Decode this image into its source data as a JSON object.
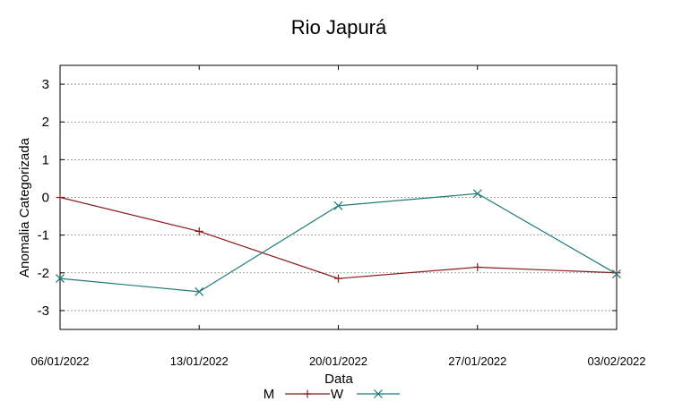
{
  "chart_data": {
    "type": "line",
    "title": "Rio Japurá",
    "xlabel": "Data",
    "ylabel": "Anomalia Categorizada",
    "categories": [
      "06/01/2022",
      "13/01/2022",
      "20/01/2022",
      "27/01/2022",
      "03/02/2022"
    ],
    "yticks": [
      "3",
      "2",
      "1",
      "0",
      "-1",
      "-2",
      "-3"
    ],
    "ylim": [
      -3.5,
      3.5
    ],
    "grid": true,
    "legend_position": "bottom",
    "series": [
      {
        "name": "M",
        "color": "#8b1a1a",
        "marker": "plus",
        "values": [
          0.0,
          -0.9,
          -2.15,
          -1.85,
          -2.0
        ]
      },
      {
        "name": "W",
        "color": "#1f7a7a",
        "marker": "cross",
        "values": [
          -2.15,
          -2.5,
          -0.22,
          0.1,
          -2.03
        ]
      }
    ]
  }
}
